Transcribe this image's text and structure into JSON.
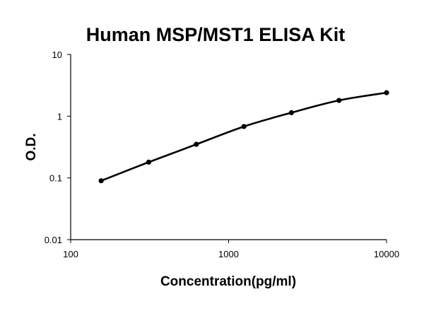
{
  "chart_data": {
    "type": "scatter",
    "title": "Human MSP/MST1 ELISA Kit",
    "xlabel": "Concentration(pg/ml)",
    "ylabel": "O.D.",
    "xscale": "log",
    "yscale": "log",
    "xlim": [
      100,
      10000
    ],
    "ylim": [
      0.01,
      10
    ],
    "x_ticks": [
      "100",
      "1000",
      "10000"
    ],
    "y_ticks": [
      "10",
      "1",
      "0.1",
      "0.01"
    ],
    "grid": false,
    "legend": "none",
    "series": [
      {
        "x": [
          156,
          312,
          625,
          1250,
          2500,
          5000,
          10000
        ],
        "y": [
          0.09,
          0.18,
          0.35,
          0.68,
          1.14,
          1.8,
          2.4
        ],
        "marker": "circle",
        "fit_line": "smooth",
        "color": "#000000"
      }
    ]
  }
}
